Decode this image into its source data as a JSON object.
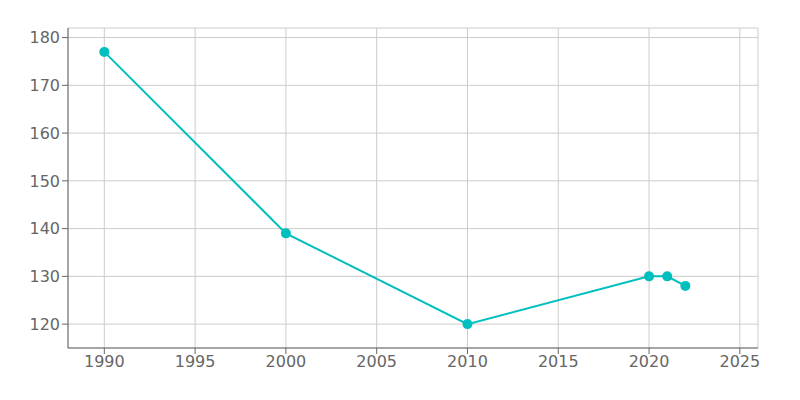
{
  "chart_data": {
    "type": "line",
    "x": [
      1990,
      2000,
      2010,
      2020,
      2021,
      2022
    ],
    "values": [
      177,
      139,
      120,
      130,
      130,
      128
    ],
    "color": "#00BFBF",
    "xlim": [
      1988,
      2026
    ],
    "ylim": [
      115,
      182
    ],
    "xticks": [
      1990,
      1995,
      2000,
      2005,
      2010,
      2015,
      2020,
      2025
    ],
    "yticks": [
      120,
      130,
      140,
      150,
      160,
      170,
      180
    ],
    "grid": true,
    "marker": "circle"
  }
}
